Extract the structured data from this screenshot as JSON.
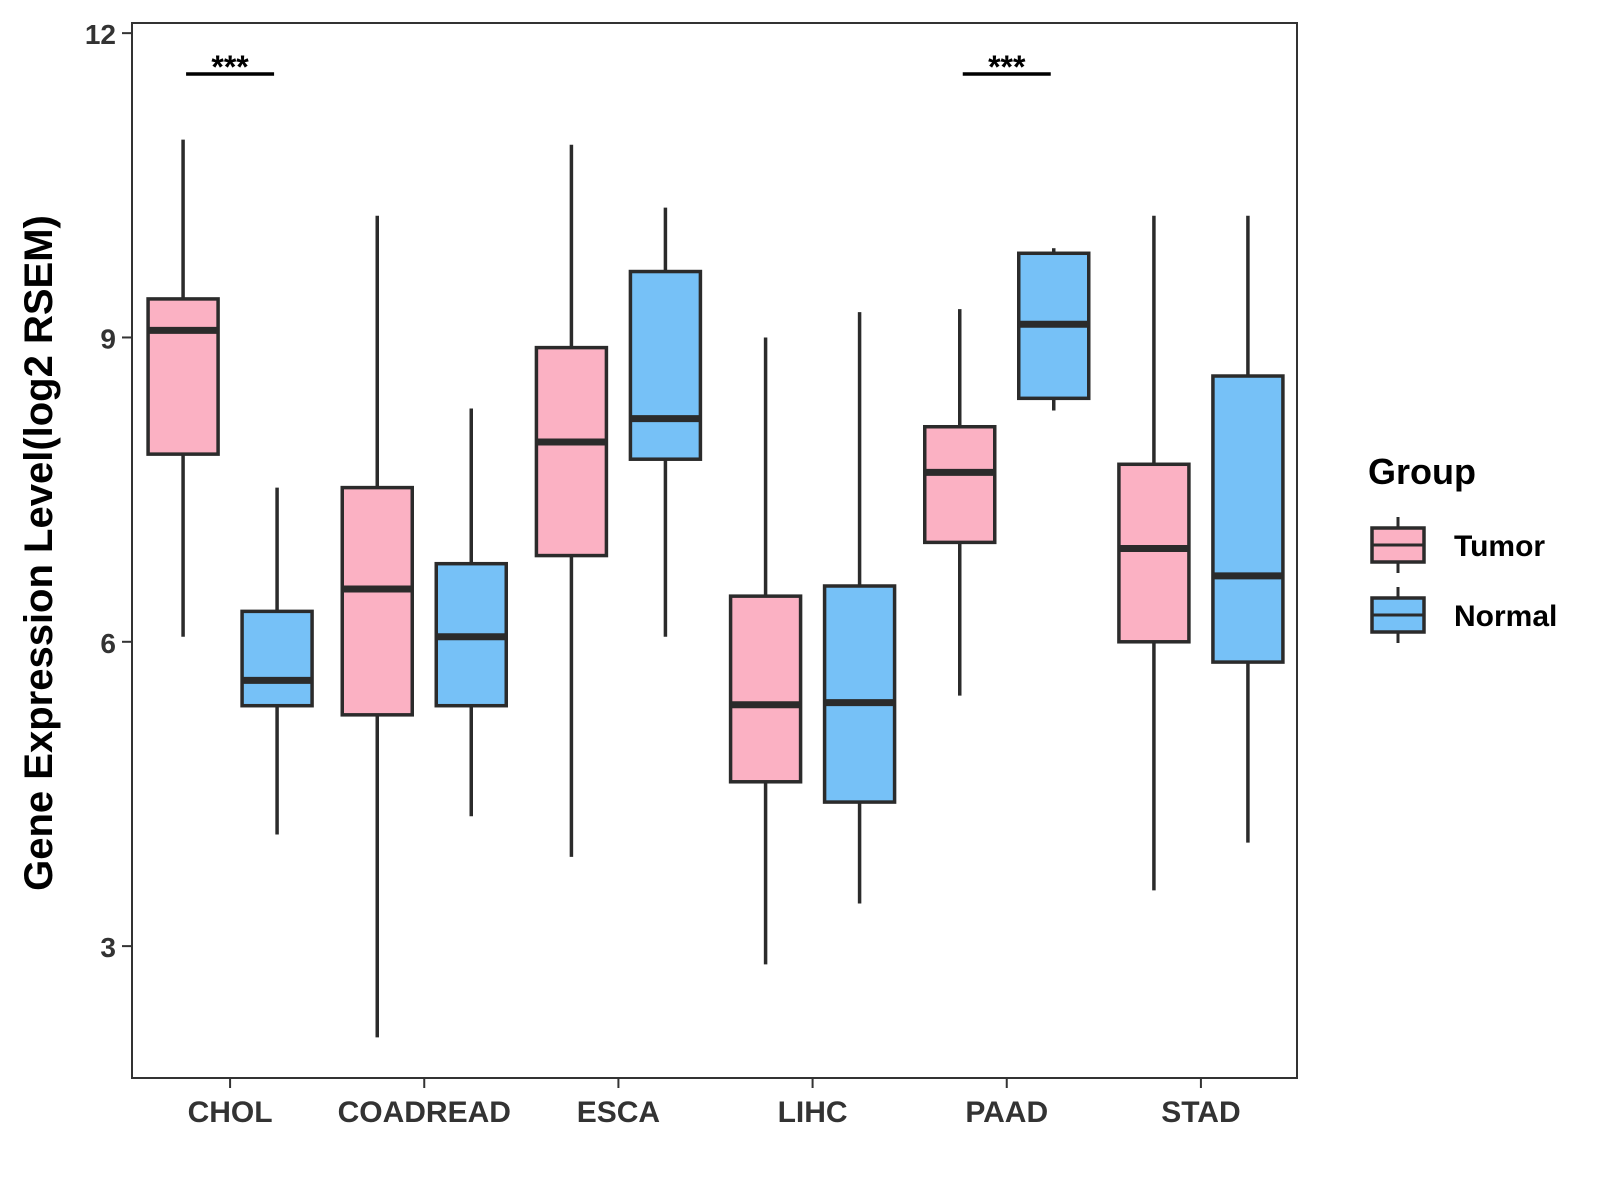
{
  "chart_data": {
    "type": "boxplot",
    "title": "",
    "xlabel": "",
    "ylabel": "Gene Expression Level(log2 RSEM)",
    "ylim": [
      1.7,
      12.1
    ],
    "yticks": [
      3,
      6,
      9,
      12
    ],
    "grid": false,
    "legend": {
      "title": "Group",
      "position": "right",
      "entries": [
        {
          "name": "Tumor",
          "color": "#fbb1c3"
        },
        {
          "name": "Normal",
          "color": "#76c1f7"
        }
      ]
    },
    "categories": [
      "CHOL",
      "COADREAD",
      "ESCA",
      "LIHC",
      "PAAD",
      "STAD"
    ],
    "series": [
      {
        "name": "Tumor",
        "color": "#fbb1c3",
        "boxes": [
          {
            "min": 6.05,
            "q1": 7.85,
            "median": 9.07,
            "q3": 9.38,
            "max": 10.95
          },
          {
            "min": 2.1,
            "q1": 5.28,
            "median": 6.52,
            "q3": 7.52,
            "max": 10.2
          },
          {
            "min": 3.88,
            "q1": 6.85,
            "median": 7.97,
            "q3": 8.9,
            "max": 10.9
          },
          {
            "min": 2.82,
            "q1": 4.62,
            "median": 5.38,
            "q3": 6.45,
            "max": 9.0
          },
          {
            "min": 5.47,
            "q1": 6.98,
            "median": 7.67,
            "q3": 8.12,
            "max": 9.28
          },
          {
            "min": 3.55,
            "q1": 6.0,
            "median": 6.92,
            "q3": 7.75,
            "max": 10.2
          }
        ]
      },
      {
        "name": "Normal",
        "color": "#76c1f7",
        "boxes": [
          {
            "min": 4.1,
            "q1": 5.37,
            "median": 5.62,
            "q3": 6.3,
            "max": 7.52
          },
          {
            "min": 4.28,
            "q1": 5.37,
            "median": 6.05,
            "q3": 6.77,
            "max": 8.3
          },
          {
            "min": 6.05,
            "q1": 7.8,
            "median": 8.2,
            "q3": 9.65,
            "max": 10.28
          },
          {
            "min": 3.42,
            "q1": 4.42,
            "median": 5.4,
            "q3": 6.55,
            "max": 9.25
          },
          {
            "min": 8.28,
            "q1": 8.4,
            "median": 9.13,
            "q3": 9.83,
            "max": 9.88
          },
          {
            "min": 4.02,
            "q1": 5.8,
            "median": 6.65,
            "q3": 8.62,
            "max": 10.2
          }
        ]
      }
    ],
    "annotations": [
      {
        "category": "CHOL",
        "text": "***"
      },
      {
        "category": "PAAD",
        "text": "***"
      }
    ]
  }
}
